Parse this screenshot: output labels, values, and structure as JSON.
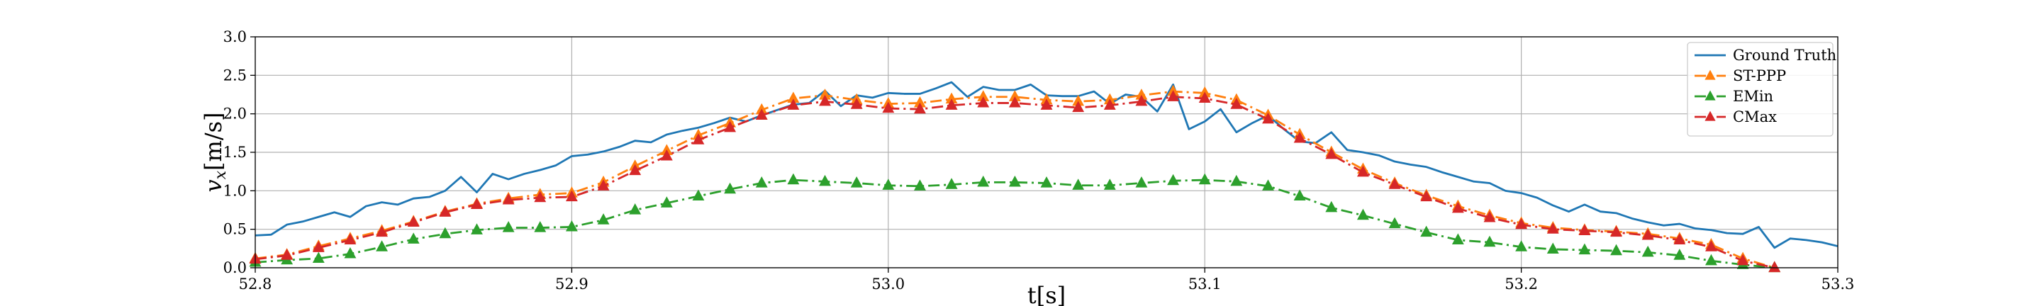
{
  "chart_data": {
    "type": "line",
    "title": "",
    "xlabel": "t[s]",
    "ylabel_main": "v",
    "ylabel_sub": "x",
    "ylabel_unit": "[m/s]",
    "xlim": [
      52.8,
      53.3
    ],
    "ylim": [
      0.0,
      3.0
    ],
    "xticks": [
      52.8,
      52.9,
      53.0,
      53.1,
      53.2,
      53.3
    ],
    "xtick_labels": [
      "52.8",
      "52.9",
      "53.0",
      "53.1",
      "53.2",
      "53.3"
    ],
    "yticks": [
      0.0,
      0.5,
      1.0,
      1.5,
      2.0,
      2.5,
      3.0
    ],
    "ytick_labels": [
      "0.0",
      "0.5",
      "1.0",
      "1.5",
      "2.0",
      "2.5",
      "3.0"
    ],
    "grid": true,
    "legend_position": "top-right",
    "series": [
      {
        "name": "Ground Truth",
        "color": "#1f77b4",
        "line_style": "solid",
        "marker": "none",
        "x": [
          52.8,
          52.805,
          52.81,
          52.815,
          52.82,
          52.825,
          52.83,
          52.835,
          52.84,
          52.845,
          52.85,
          52.855,
          52.86,
          52.865,
          52.87,
          52.875,
          52.88,
          52.885,
          52.89,
          52.895,
          52.9,
          52.905,
          52.91,
          52.915,
          52.92,
          52.925,
          52.93,
          52.935,
          52.94,
          52.945,
          52.95,
          52.955,
          52.96,
          52.965,
          52.97,
          52.975,
          52.98,
          52.985,
          52.99,
          52.995,
          53.0,
          53.005,
          53.01,
          53.015,
          53.02,
          53.025,
          53.03,
          53.035,
          53.04,
          53.045,
          53.05,
          53.055,
          53.06,
          53.065,
          53.07,
          53.075,
          53.08,
          53.085,
          53.09,
          53.095,
          53.1,
          53.105,
          53.11,
          53.115,
          53.12,
          53.125,
          53.13,
          53.135,
          53.14,
          53.145,
          53.15,
          53.155,
          53.16,
          53.165,
          53.17,
          53.175,
          53.18,
          53.185,
          53.19,
          53.195,
          53.2,
          53.205,
          53.21,
          53.215,
          53.22,
          53.225,
          53.23,
          53.235,
          53.24,
          53.245,
          53.25,
          53.255,
          53.26,
          53.265,
          53.27,
          53.275,
          53.28,
          53.285,
          53.29,
          53.295,
          53.3
        ],
        "y": [
          0.42,
          0.43,
          0.56,
          0.6,
          0.66,
          0.72,
          0.66,
          0.8,
          0.85,
          0.82,
          0.9,
          0.92,
          1.0,
          1.18,
          0.98,
          1.22,
          1.15,
          1.22,
          1.27,
          1.33,
          1.45,
          1.47,
          1.51,
          1.57,
          1.65,
          1.63,
          1.73,
          1.78,
          1.82,
          1.88,
          1.95,
          1.9,
          1.98,
          2.05,
          2.12,
          2.14,
          2.3,
          2.1,
          2.24,
          2.21,
          2.27,
          2.26,
          2.26,
          2.33,
          2.41,
          2.22,
          2.35,
          2.31,
          2.31,
          2.38,
          2.24,
          2.23,
          2.23,
          2.29,
          2.13,
          2.25,
          2.22,
          2.03,
          2.38,
          1.8,
          1.9,
          2.06,
          1.76,
          1.88,
          1.98,
          1.8,
          1.64,
          1.62,
          1.76,
          1.53,
          1.5,
          1.46,
          1.38,
          1.34,
          1.31,
          1.24,
          1.18,
          1.12,
          1.1,
          1.0,
          0.97,
          0.91,
          0.81,
          0.73,
          0.82,
          0.73,
          0.71,
          0.64,
          0.59,
          0.55,
          0.57,
          0.51,
          0.49,
          0.45,
          0.44,
          0.53,
          0.26,
          0.38,
          0.36,
          0.33,
          0.28
        ]
      },
      {
        "name": "ST-PPP",
        "color": "#ff7f0e",
        "line_style": "dashdot",
        "marker": "triangle",
        "x": [
          52.8,
          52.81,
          52.82,
          52.83,
          52.84,
          52.85,
          52.86,
          52.87,
          52.88,
          52.89,
          52.9,
          52.91,
          52.92,
          52.93,
          52.94,
          52.95,
          52.96,
          52.97,
          52.98,
          52.99,
          53.0,
          53.01,
          53.02,
          53.03,
          53.04,
          53.05,
          53.06,
          53.07,
          53.08,
          53.09,
          53.1,
          53.11,
          53.12,
          53.13,
          53.14,
          53.15,
          53.16,
          53.17,
          53.18,
          53.19,
          53.2,
          53.21,
          53.22,
          53.23,
          53.24,
          53.25,
          53.26,
          53.27,
          53.28
        ],
        "y": [
          0.12,
          0.17,
          0.28,
          0.38,
          0.48,
          0.6,
          0.73,
          0.83,
          0.9,
          0.95,
          0.97,
          1.11,
          1.32,
          1.52,
          1.72,
          1.88,
          2.05,
          2.2,
          2.24,
          2.18,
          2.13,
          2.14,
          2.19,
          2.22,
          2.22,
          2.18,
          2.16,
          2.18,
          2.24,
          2.29,
          2.27,
          2.18,
          1.98,
          1.73,
          1.5,
          1.28,
          1.1,
          0.94,
          0.8,
          0.68,
          0.58,
          0.52,
          0.49,
          0.47,
          0.44,
          0.38,
          0.3,
          0.12,
          0.0
        ]
      },
      {
        "name": "EMin",
        "color": "#2ca02c",
        "line_style": "dashdot",
        "marker": "triangle",
        "x": [
          52.8,
          52.81,
          52.82,
          52.83,
          52.84,
          52.85,
          52.86,
          52.87,
          52.88,
          52.89,
          52.9,
          52.91,
          52.92,
          52.93,
          52.94,
          52.95,
          52.96,
          52.97,
          52.98,
          52.99,
          53.0,
          53.01,
          53.02,
          53.03,
          53.04,
          53.05,
          53.06,
          53.07,
          53.08,
          53.09,
          53.1,
          53.11,
          53.12,
          53.13,
          53.14,
          53.15,
          53.16,
          53.17,
          53.18,
          53.19,
          53.2,
          53.21,
          53.22,
          53.23,
          53.24,
          53.25,
          53.26,
          53.27,
          53.28
        ],
        "y": [
          0.07,
          0.1,
          0.12,
          0.18,
          0.27,
          0.37,
          0.44,
          0.49,
          0.52,
          0.52,
          0.53,
          0.62,
          0.75,
          0.84,
          0.93,
          1.02,
          1.1,
          1.14,
          1.12,
          1.1,
          1.07,
          1.06,
          1.08,
          1.11,
          1.11,
          1.1,
          1.07,
          1.07,
          1.1,
          1.13,
          1.14,
          1.12,
          1.06,
          0.93,
          0.78,
          0.68,
          0.57,
          0.46,
          0.36,
          0.33,
          0.27,
          0.24,
          0.23,
          0.22,
          0.2,
          0.16,
          0.09,
          0.04,
          0.0
        ]
      },
      {
        "name": "CMax",
        "color": "#d62728",
        "line_style": "dashdot",
        "marker": "triangle",
        "x": [
          52.8,
          52.81,
          52.82,
          52.83,
          52.84,
          52.85,
          52.86,
          52.87,
          52.88,
          52.89,
          52.9,
          52.91,
          52.92,
          52.93,
          52.94,
          52.95,
          52.96,
          52.97,
          52.98,
          52.99,
          53.0,
          53.01,
          53.02,
          53.03,
          53.04,
          53.05,
          53.06,
          53.07,
          53.08,
          53.09,
          53.1,
          53.11,
          53.12,
          53.13,
          53.14,
          53.15,
          53.16,
          53.17,
          53.18,
          53.19,
          53.2,
          53.21,
          53.22,
          53.23,
          53.24,
          53.25,
          53.26,
          53.27,
          53.28
        ],
        "y": [
          0.11,
          0.16,
          0.26,
          0.36,
          0.46,
          0.59,
          0.72,
          0.82,
          0.88,
          0.91,
          0.92,
          1.06,
          1.26,
          1.45,
          1.66,
          1.82,
          1.98,
          2.11,
          2.16,
          2.12,
          2.07,
          2.06,
          2.11,
          2.14,
          2.14,
          2.11,
          2.08,
          2.11,
          2.16,
          2.22,
          2.2,
          2.12,
          1.93,
          1.68,
          1.47,
          1.24,
          1.08,
          0.92,
          0.77,
          0.65,
          0.56,
          0.5,
          0.48,
          0.46,
          0.42,
          0.36,
          0.27,
          0.09,
          0.0
        ]
      }
    ]
  }
}
